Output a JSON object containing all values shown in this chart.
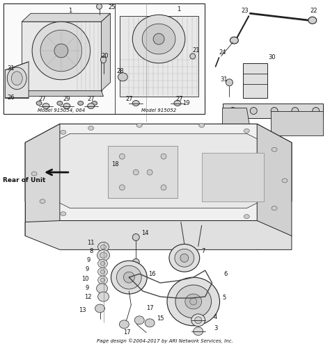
{
  "background_color": "#ffffff",
  "footer_text": "Page design ©2004-2017 by ARI Network Services, Inc.",
  "fig_width": 4.74,
  "fig_height": 4.98,
  "dpi": 100,
  "engine1_label": "Model 915054, 064",
  "engine2_label": "Model 915052",
  "rear_label": "Rear of Unit",
  "lc": "#222222",
  "lc2": "#555555",
  "face_light": "#f0f0f0",
  "face_mid": "#e0e0e0",
  "face_dark": "#c8c8c8",
  "label_fontsize": 6.0,
  "footer_fontsize": 5.0
}
